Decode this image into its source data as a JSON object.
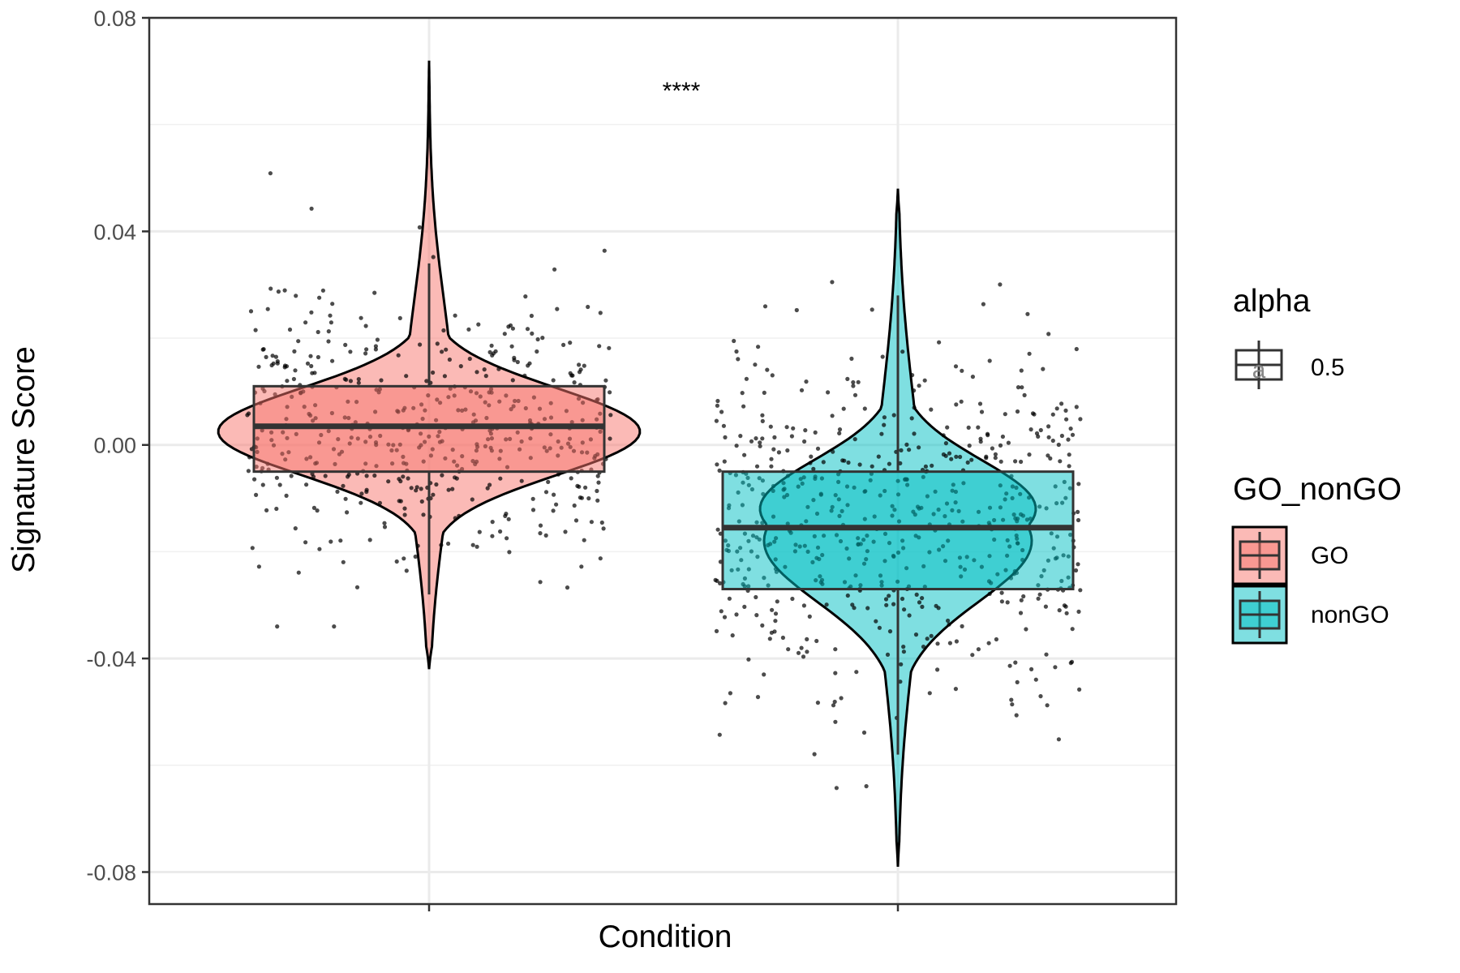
{
  "chart_data": {
    "type": "violin",
    "xlabel": "Condition",
    "ylabel": "Signature Score",
    "ylim": [
      -0.086,
      0.08
    ],
    "y_ticks": [
      0.08,
      0.04,
      0.0,
      -0.04,
      -0.08
    ],
    "y_tick_labels": [
      "0.08",
      "0.04",
      "0.00",
      "-0.04",
      "-0.08"
    ],
    "grid": true,
    "significance_label": "****",
    "groups": [
      {
        "name": "GO",
        "fill": "#F8766D",
        "box": {
          "q1": -0.005,
          "median": 0.0035,
          "q3": 0.011,
          "whisker_low": -0.028,
          "whisker_high": 0.034
        },
        "violin_range": [
          -0.042,
          0.072
        ],
        "n_points": 500,
        "points_range": [
          -0.034,
          0.063
        ]
      },
      {
        "name": "nonGO",
        "fill": "#00BFC4",
        "box": {
          "q1": -0.027,
          "median": -0.0155,
          "q3": -0.005,
          "whisker_low": -0.058,
          "whisker_high": 0.028
        },
        "violin_range": [
          -0.079,
          0.048
        ],
        "n_points": 600,
        "points_range": [
          -0.067,
          0.034
        ]
      }
    ],
    "legend": {
      "placement": "right",
      "alpha_title": "alpha",
      "alpha_value": "0.5",
      "alpha_key_glyph": "a",
      "fill_title": "GO_nonGO",
      "entries": [
        {
          "label": "GO",
          "color": "#F8766D"
        },
        {
          "label": "nonGO",
          "color": "#00BFC4"
        }
      ]
    }
  }
}
